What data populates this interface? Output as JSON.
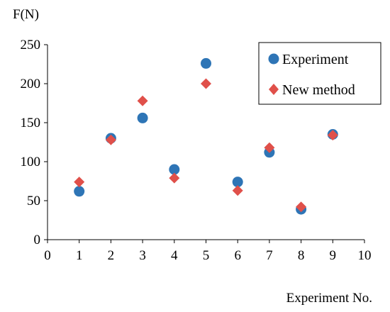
{
  "chart_data": {
    "type": "scatter",
    "ylabel": "F(N)",
    "xlabel": "Experiment No.",
    "xlim": [
      0,
      10
    ],
    "ylim": [
      0,
      250
    ],
    "xticks": [
      "0",
      "1",
      "2",
      "3",
      "4",
      "5",
      "6",
      "7",
      "8",
      "9",
      "10"
    ],
    "yticks": [
      "0",
      "50",
      "100",
      "150",
      "200",
      "250"
    ],
    "grid": false,
    "legend_position": "top-right",
    "series": [
      {
        "name": "Experiment",
        "marker": "circle",
        "color": "#2E75B6",
        "x": [
          1,
          2,
          3,
          4,
          5,
          6,
          7,
          8,
          9
        ],
        "y": [
          62,
          130,
          156,
          90,
          226,
          74,
          112,
          39,
          135
        ]
      },
      {
        "name": "New method",
        "marker": "diamond",
        "color": "#E0504A",
        "x": [
          1,
          2,
          3,
          4,
          5,
          6,
          7,
          8,
          9
        ],
        "y": [
          74,
          128,
          178,
          79,
          200,
          63,
          118,
          42,
          134
        ]
      }
    ]
  }
}
